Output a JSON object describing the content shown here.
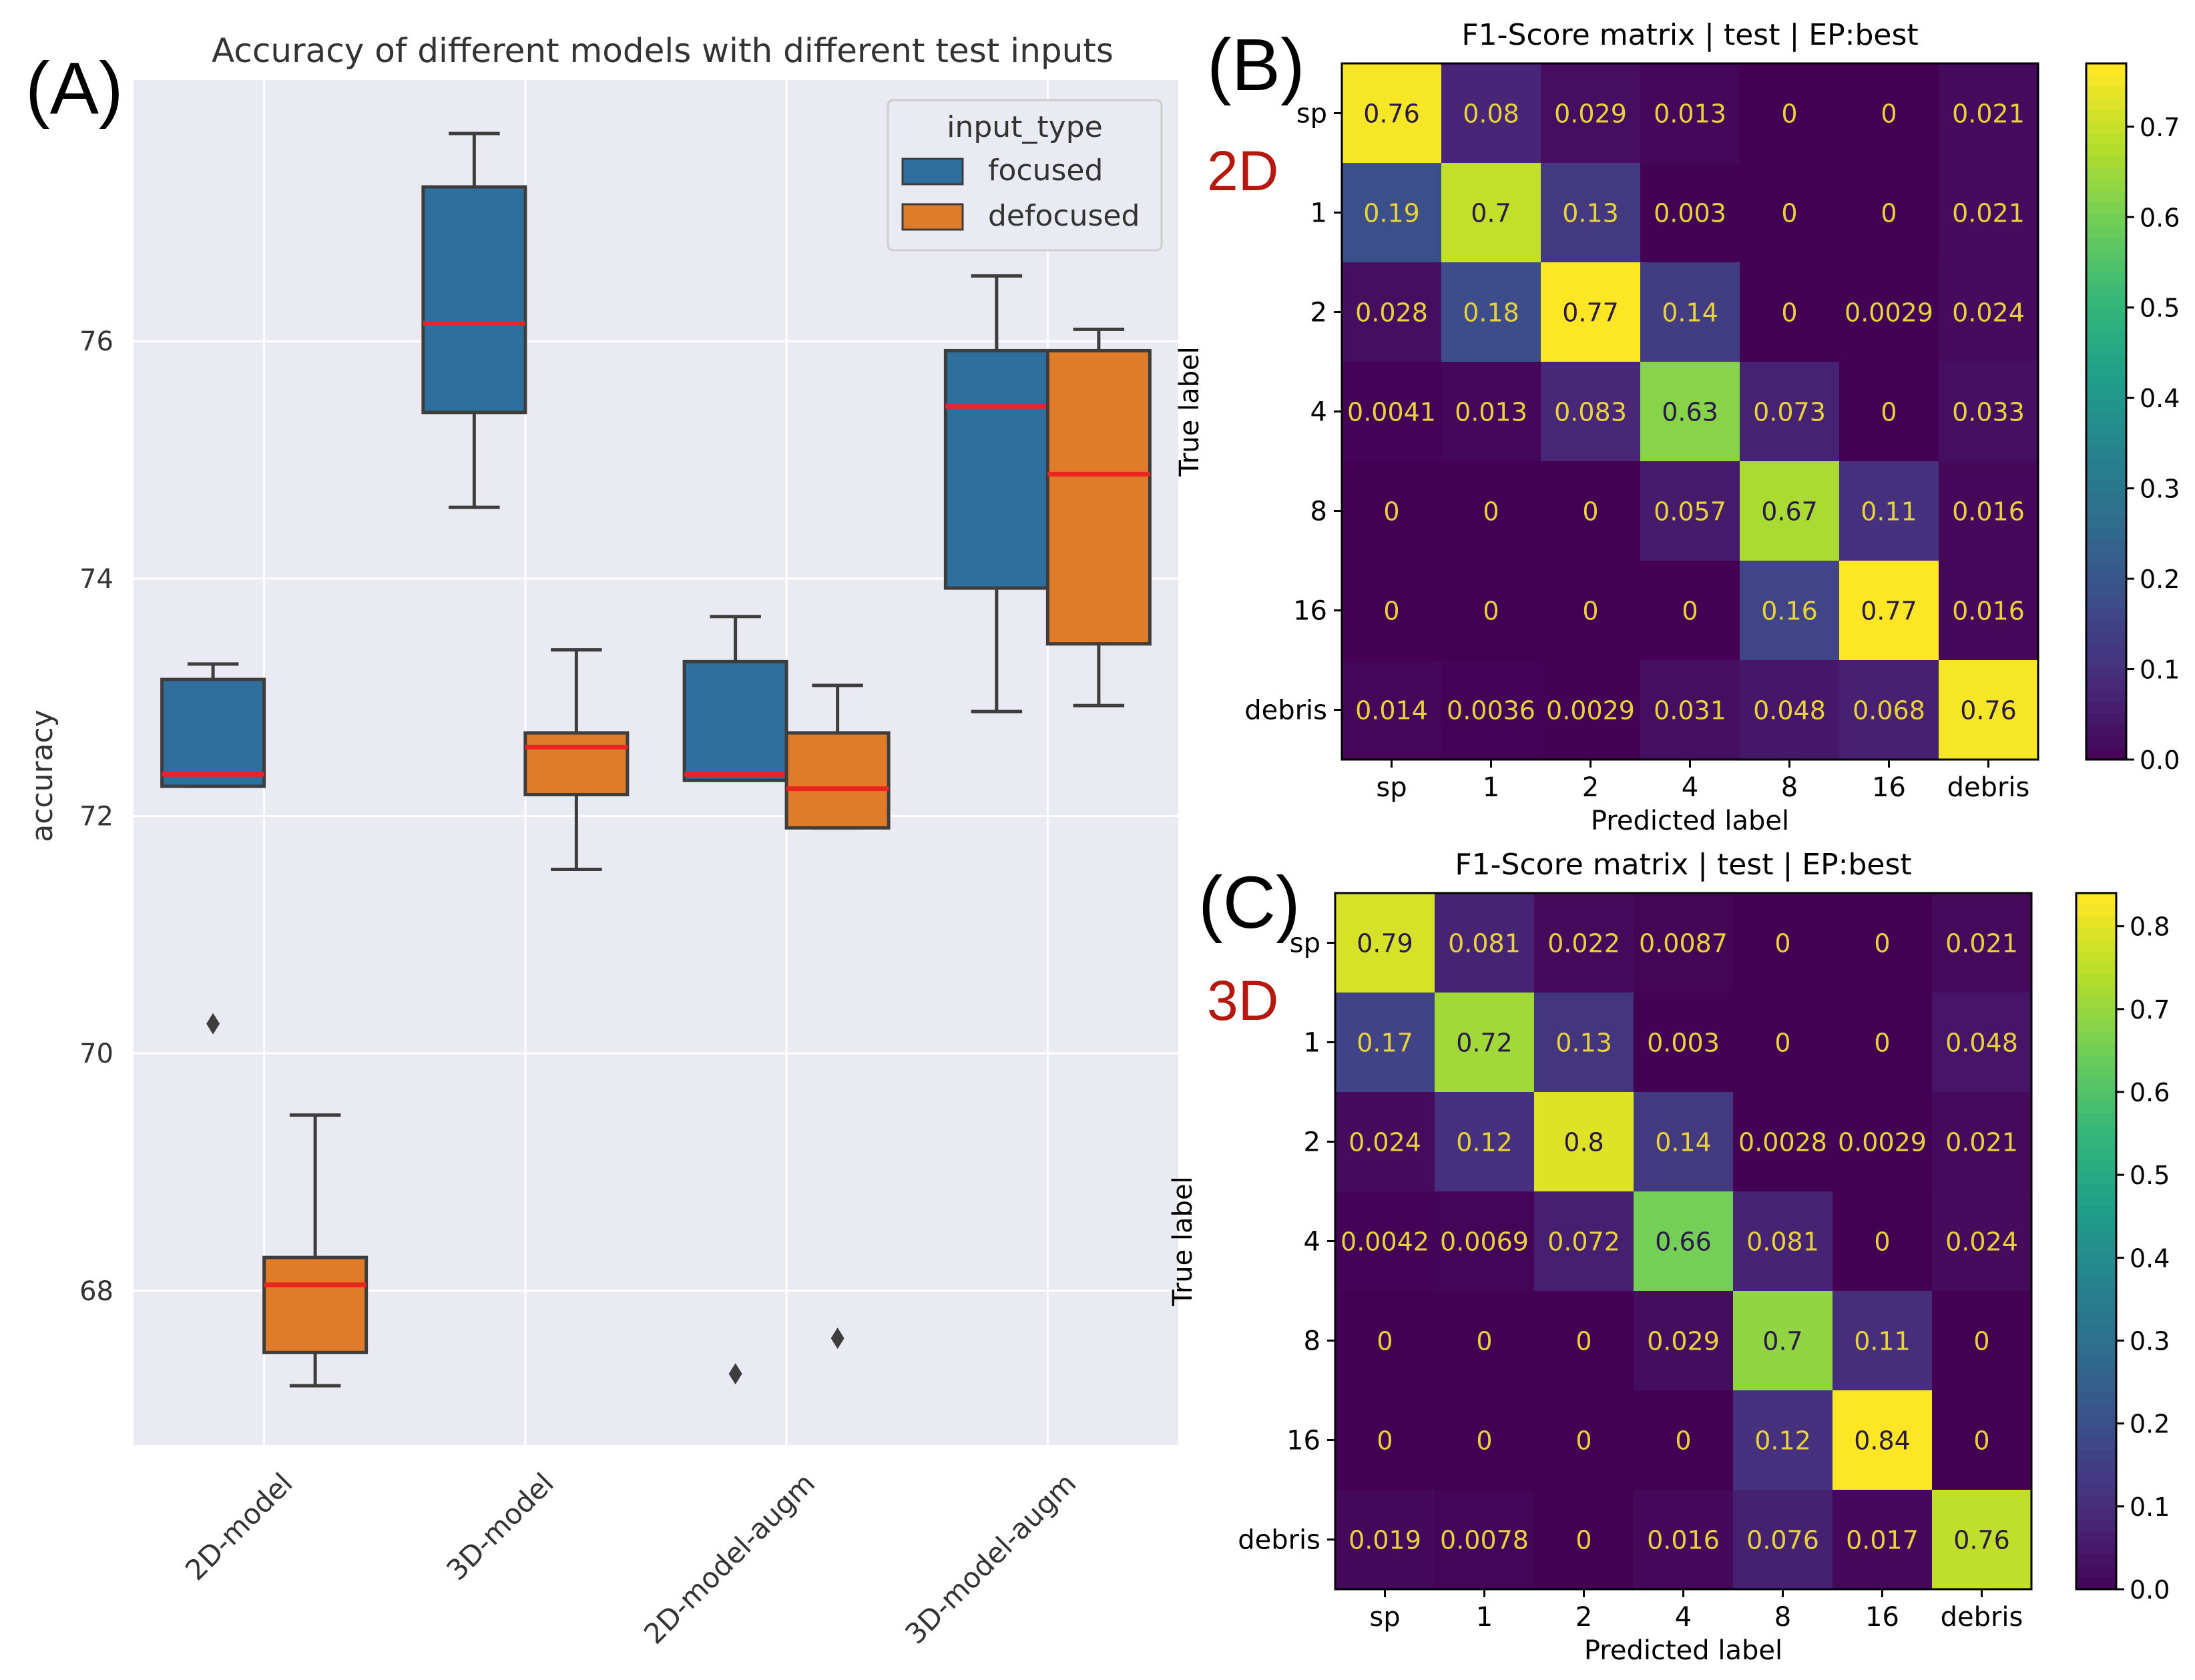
{
  "panel_labels": {
    "a": "(A)",
    "b": "(B)",
    "c": "(C)"
  },
  "model_tags": {
    "b": "2D",
    "c": "3D"
  },
  "colors": {
    "focused": "#2e6f9e",
    "defocused": "#e07b2a",
    "median": "#e8251f",
    "axes_bg": "#eaeaf2",
    "tag": "#b5180f"
  },
  "chart_data": [
    {
      "type": "box",
      "title": "Accuracy of different models with different test inputs",
      "xlabel": "",
      "ylabel": "accuracy",
      "ylim": [
        66.7,
        78.2
      ],
      "yticks": [
        68,
        70,
        72,
        74,
        76
      ],
      "grid": true,
      "categories": [
        "2D-model",
        "3D-model",
        "2D-model-augm",
        "3D-model-augm"
      ],
      "legend": {
        "title": "input_type",
        "position": "top-right",
        "entries": [
          "focused",
          "defocused"
        ]
      },
      "series": [
        {
          "name": "focused",
          "boxes": [
            {
              "whislo": 72.25,
              "q1": 72.25,
              "med": 72.35,
              "q3": 73.15,
              "whishi": 73.28,
              "fliers": [
                70.25
              ]
            },
            {
              "whislo": 74.6,
              "q1": 75.4,
              "med": 76.15,
              "q3": 77.3,
              "whishi": 77.75,
              "fliers": []
            },
            {
              "whislo": 72.3,
              "q1": 72.3,
              "med": 72.35,
              "q3": 73.3,
              "whishi": 73.68,
              "fliers": [
                67.3
              ]
            },
            {
              "whislo": 72.88,
              "q1": 73.92,
              "med": 75.45,
              "q3": 75.92,
              "whishi": 76.55,
              "fliers": []
            }
          ]
        },
        {
          "name": "defocused",
          "boxes": [
            {
              "whislo": 67.2,
              "q1": 67.48,
              "med": 68.05,
              "q3": 68.28,
              "whishi": 69.48,
              "fliers": []
            },
            {
              "whislo": 71.55,
              "q1": 72.18,
              "med": 72.58,
              "q3": 72.7,
              "whishi": 73.4,
              "fliers": []
            },
            {
              "whislo": 71.9,
              "q1": 71.9,
              "med": 72.23,
              "q3": 72.7,
              "whishi": 73.1,
              "fliers": [
                67.6
              ]
            },
            {
              "whislo": 72.93,
              "q1": 73.45,
              "med": 74.88,
              "q3": 75.92,
              "whishi": 76.1,
              "fliers": []
            }
          ]
        }
      ]
    },
    {
      "type": "heatmap",
      "title": "F1-Score matrix | test | EP:best",
      "xlabel": "Predicted label",
      "ylabel": "True label",
      "labels": [
        "sp",
        "1",
        "2",
        "4",
        "8",
        "16",
        "debris"
      ],
      "colorbar_ticks": [
        "0.0",
        "0.1",
        "0.2",
        "0.3",
        "0.4",
        "0.5",
        "0.6",
        "0.7"
      ],
      "vmin": 0.0,
      "vmax": 0.77,
      "matrix": [
        [
          "0.76",
          "0.08",
          "0.029",
          "0.013",
          "0",
          "0",
          "0.021"
        ],
        [
          "0.19",
          "0.7",
          "0.13",
          "0.003",
          "0",
          "0",
          "0.021"
        ],
        [
          "0.028",
          "0.18",
          "0.77",
          "0.14",
          "0",
          "0.0029",
          "0.024"
        ],
        [
          "0.0041",
          "0.013",
          "0.083",
          "0.63",
          "0.073",
          "0",
          "0.033"
        ],
        [
          "0",
          "0",
          "0",
          "0.057",
          "0.67",
          "0.11",
          "0.016"
        ],
        [
          "0",
          "0",
          "0",
          "0",
          "0.16",
          "0.77",
          "0.016"
        ],
        [
          "0.014",
          "0.0036",
          "0.0029",
          "0.031",
          "0.048",
          "0.068",
          "0.76"
        ]
      ]
    },
    {
      "type": "heatmap",
      "title": "F1-Score matrix | test | EP:best",
      "xlabel": "Predicted label",
      "ylabel": "True label",
      "labels": [
        "sp",
        "1",
        "2",
        "4",
        "8",
        "16",
        "debris"
      ],
      "colorbar_ticks": [
        "0.0",
        "0.1",
        "0.2",
        "0.3",
        "0.4",
        "0.5",
        "0.6",
        "0.7",
        "0.8"
      ],
      "vmin": 0.0,
      "vmax": 0.84,
      "matrix": [
        [
          "0.79",
          "0.081",
          "0.022",
          "0.0087",
          "0",
          "0",
          "0.021"
        ],
        [
          "0.17",
          "0.72",
          "0.13",
          "0.003",
          "0",
          "0",
          "0.048"
        ],
        [
          "0.024",
          "0.12",
          "0.8",
          "0.14",
          "0.0028",
          "0.0029",
          "0.021"
        ],
        [
          "0.0042",
          "0.0069",
          "0.072",
          "0.66",
          "0.081",
          "0",
          "0.024"
        ],
        [
          "0",
          "0",
          "0",
          "0.029",
          "0.7",
          "0.11",
          "0"
        ],
        [
          "0",
          "0",
          "0",
          "0",
          "0.12",
          "0.84",
          "0"
        ],
        [
          "0.019",
          "0.0078",
          "0",
          "0.016",
          "0.076",
          "0.017",
          "0.76"
        ]
      ]
    }
  ]
}
